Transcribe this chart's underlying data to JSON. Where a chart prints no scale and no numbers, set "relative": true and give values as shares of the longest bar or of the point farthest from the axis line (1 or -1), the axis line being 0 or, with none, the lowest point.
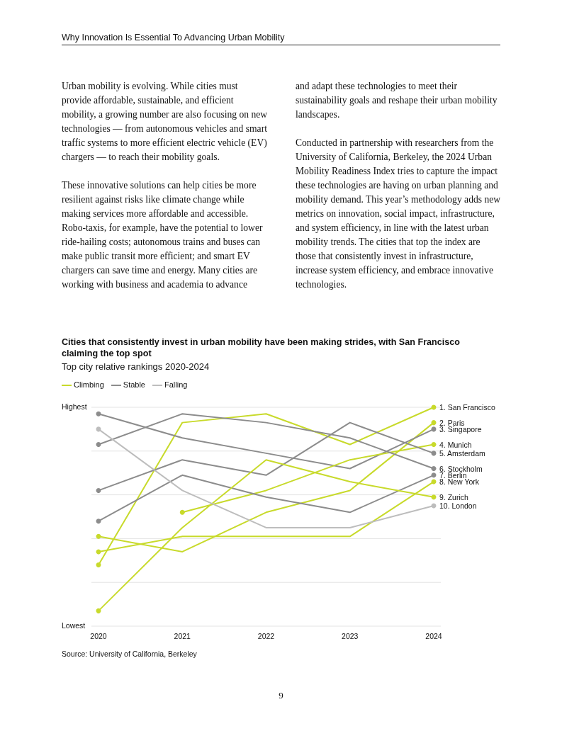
{
  "chart_data": {
    "type": "line",
    "title": "Cities that consistently invest in urban mobility have been making strides, with San Francisco claiming the top spot",
    "subtitle": "Top city relative rankings 2020-2024",
    "annotations": [
      "Why Innovation Is Essential To Advancing Urban Mobility",
      "Urban mobility is evolving. While cities must provide affordable, sustainable, and efficient mobility, a growing number are also focusing on new technologies — from autonomous vehicles and smart traffic systems to more efficient electric vehicle (EV) chargers — to reach their mobility goals.",
      "These innovative solutions can help cities be more resilient against risks like climate change while making services more affordable and accessible. Robo-taxis, for example, have the potential to lower ride-hailing costs; autonomous trains and buses can make public transit more efficient; and smart EV chargers can save time and energy. Many cities are working with business and academia to advance",
      "and adapt these technologies to meet their sustainability goals and reshape their urban mobility landscapes.",
      "Conducted in partnership with researchers from the University of California, Berkeley, the 2024 Urban Mobility Readiness Index tries to capture the impact these technologies are having on urban planning and mobility demand. This year’s methodology adds new metrics on innovation, social impact, infrastructure, and system efficiency, in line with the latest urban mobility trends. The cities that top the index are those that consistently invest in infrastructure, increase system efficiency, and embrace innovative technologies.",
      "Climbing",
      "Stable",
      "Falling",
      "Source: University of California, Berkeley",
      "9",
      "Highest",
      "Lowest"
    ],
    "relative": true,
    "categories": [
      "2020",
      "2021",
      "2022",
      "2023",
      "2024"
    ],
    "grid": "y",
    "line_style": "solid",
    "series": [
      {
        "name": "1. San Francisco",
        "color": "#c8da2b",
        "values": [
          0.28,
          0.93,
          0.97,
          0.83,
          1
        ]
      },
      {
        "name": "2. Paris",
        "color": "#c8da2b",
        "values": [
          0.41,
          0.34,
          0.52,
          0.62,
          0.93
        ]
      },
      {
        "name": "3. Singapore",
        "color": "#8c8c8c",
        "values": [
          0.97,
          0.86,
          0.79,
          0.72,
          0.9
        ]
      },
      {
        "name": "4. Munich",
        "color": "#c8da2b",
        "values": [
          null,
          0.52,
          0.62,
          0.76,
          0.83
        ]
      },
      {
        "name": "5. Amsterdam",
        "color": "#8c8c8c",
        "values": [
          0.62,
          0.76,
          0.69,
          0.93,
          0.79
        ]
      },
      {
        "name": "6. Stockholm",
        "color": "#8c8c8c",
        "values": [
          0.83,
          0.97,
          0.93,
          0.86,
          0.72
        ]
      },
      {
        "name": "7. Berlin",
        "color": "#8c8c8c",
        "values": [
          0.48,
          0.69,
          0.59,
          0.52,
          0.69
        ]
      },
      {
        "name": "8. New York",
        "color": "#c8da2b",
        "values": [
          0.34,
          0.41,
          0.41,
          0.41,
          0.66
        ]
      },
      {
        "name": "9. Zurich",
        "color": "#c8da2b",
        "values": [
          0.07,
          0.45,
          0.76,
          0.66,
          0.59
        ]
      },
      {
        "name": "10. London",
        "color": "#bdbdbd",
        "values": [
          0.9,
          0.62,
          0.45,
          0.45,
          0.55
        ]
      }
    ]
  }
}
